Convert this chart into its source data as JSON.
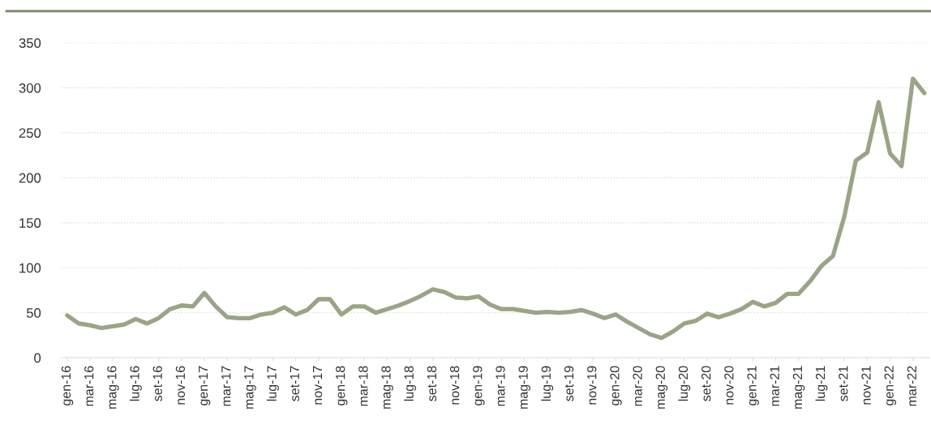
{
  "chart_data": {
    "type": "line",
    "categories": [
      "gen-16",
      null,
      "mar-16",
      null,
      "mag-16",
      null,
      "lug-16",
      null,
      "set-16",
      null,
      "nov-16",
      null,
      "gen-17",
      null,
      "mar-17",
      null,
      "mag-17",
      null,
      "lug-17",
      null,
      "set-17",
      null,
      "nov-17",
      null,
      "gen-18",
      null,
      "mar-18",
      null,
      "mag-18",
      null,
      "lug-18",
      null,
      "set-18",
      null,
      "nov-18",
      null,
      "gen-19",
      null,
      "mar-19",
      null,
      "mag-19",
      null,
      "lug-19",
      null,
      "set-19",
      null,
      "nov-19",
      null,
      "gen-20",
      null,
      "mar-20",
      null,
      "mag-20",
      null,
      "lug-20",
      null,
      "set-20",
      null,
      "nov-20",
      null,
      "gen-21",
      null,
      "mar-21",
      null,
      "mag-21",
      null,
      "lug-21",
      null,
      "set-21",
      null,
      "nov-21",
      null,
      "gen-22",
      null,
      "mar-22",
      null
    ],
    "series": [
      {
        "color": "#9aa486",
        "values": [
          47,
          38,
          36,
          33,
          35,
          37,
          43,
          38,
          44,
          54,
          58,
          57,
          72,
          57,
          45,
          44,
          44,
          48,
          50,
          56,
          48,
          53,
          65,
          65,
          48,
          57,
          57,
          50,
          54,
          58,
          63,
          69,
          76,
          73,
          67,
          66,
          68,
          59,
          54,
          54,
          52,
          50,
          51,
          50,
          51,
          53,
          49,
          44,
          48,
          40,
          33,
          26,
          22,
          29,
          38,
          41,
          49,
          45,
          49,
          54,
          62,
          57,
          61,
          71,
          71,
          85,
          102,
          113,
          157,
          219,
          228,
          284,
          227,
          213,
          310,
          294
        ]
      }
    ],
    "ylim": [
      0,
      350
    ],
    "yticks": [
      0,
      50,
      100,
      150,
      200,
      250,
      300,
      350
    ],
    "grid": "y",
    "line_style": "solid"
  }
}
